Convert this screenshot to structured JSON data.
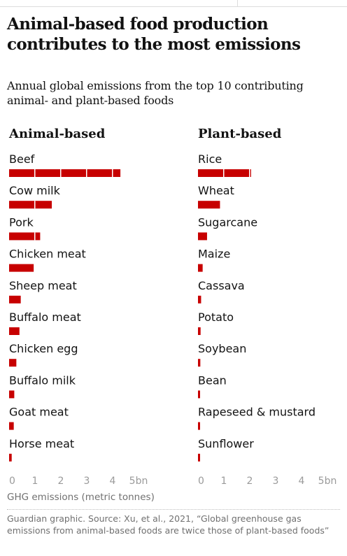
{
  "headline": "Animal-based food production contributes to the most emissions",
  "subhead": "Annual global emissions from the top 10 contributing animal- and plant-based foods",
  "axis_title": "GHG emissions (metric tonnes)",
  "source": "Guardian graphic. Source: Xu, et al., 2021, “Global greenhouse gas emissions from animal-based foods are twice those of plant-based foods”",
  "colors": {
    "bar": "#c70000",
    "text": "#121212",
    "muted": "#707070",
    "grid": "#dcdcdc"
  },
  "chart_data": [
    {
      "type": "bar",
      "orientation": "horizontal",
      "title": "Animal-based",
      "categories": [
        "Beef",
        "Cow milk",
        "Pork",
        "Chicken meat",
        "Sheep meat",
        "Buffalo meat",
        "Chicken egg",
        "Buffalo milk",
        "Goat meat",
        "Horse meat"
      ],
      "values": [
        4.3,
        1.65,
        1.2,
        0.95,
        0.45,
        0.4,
        0.28,
        0.2,
        0.18,
        0.1
      ],
      "xticks": [
        "0",
        "1",
        "2",
        "3",
        "4",
        "5bn"
      ],
      "xlim": [
        0,
        5
      ],
      "unit": "bn",
      "grid": false
    },
    {
      "type": "bar",
      "orientation": "horizontal",
      "title": "Plant-based",
      "categories": [
        "Rice",
        "Wheat",
        "Sugarcane",
        "Maize",
        "Cassava",
        "Potato",
        "Soybean",
        "Bean",
        "Rapeseed & mustard",
        "Sunflower"
      ],
      "values": [
        2.05,
        0.85,
        0.35,
        0.18,
        0.12,
        0.1,
        0.09,
        0.08,
        0.08,
        0.05
      ],
      "xticks": [
        "0",
        "1",
        "2",
        "3",
        "4",
        "5bn"
      ],
      "xlim": [
        0,
        5
      ],
      "unit": "bn",
      "grid": false
    }
  ]
}
